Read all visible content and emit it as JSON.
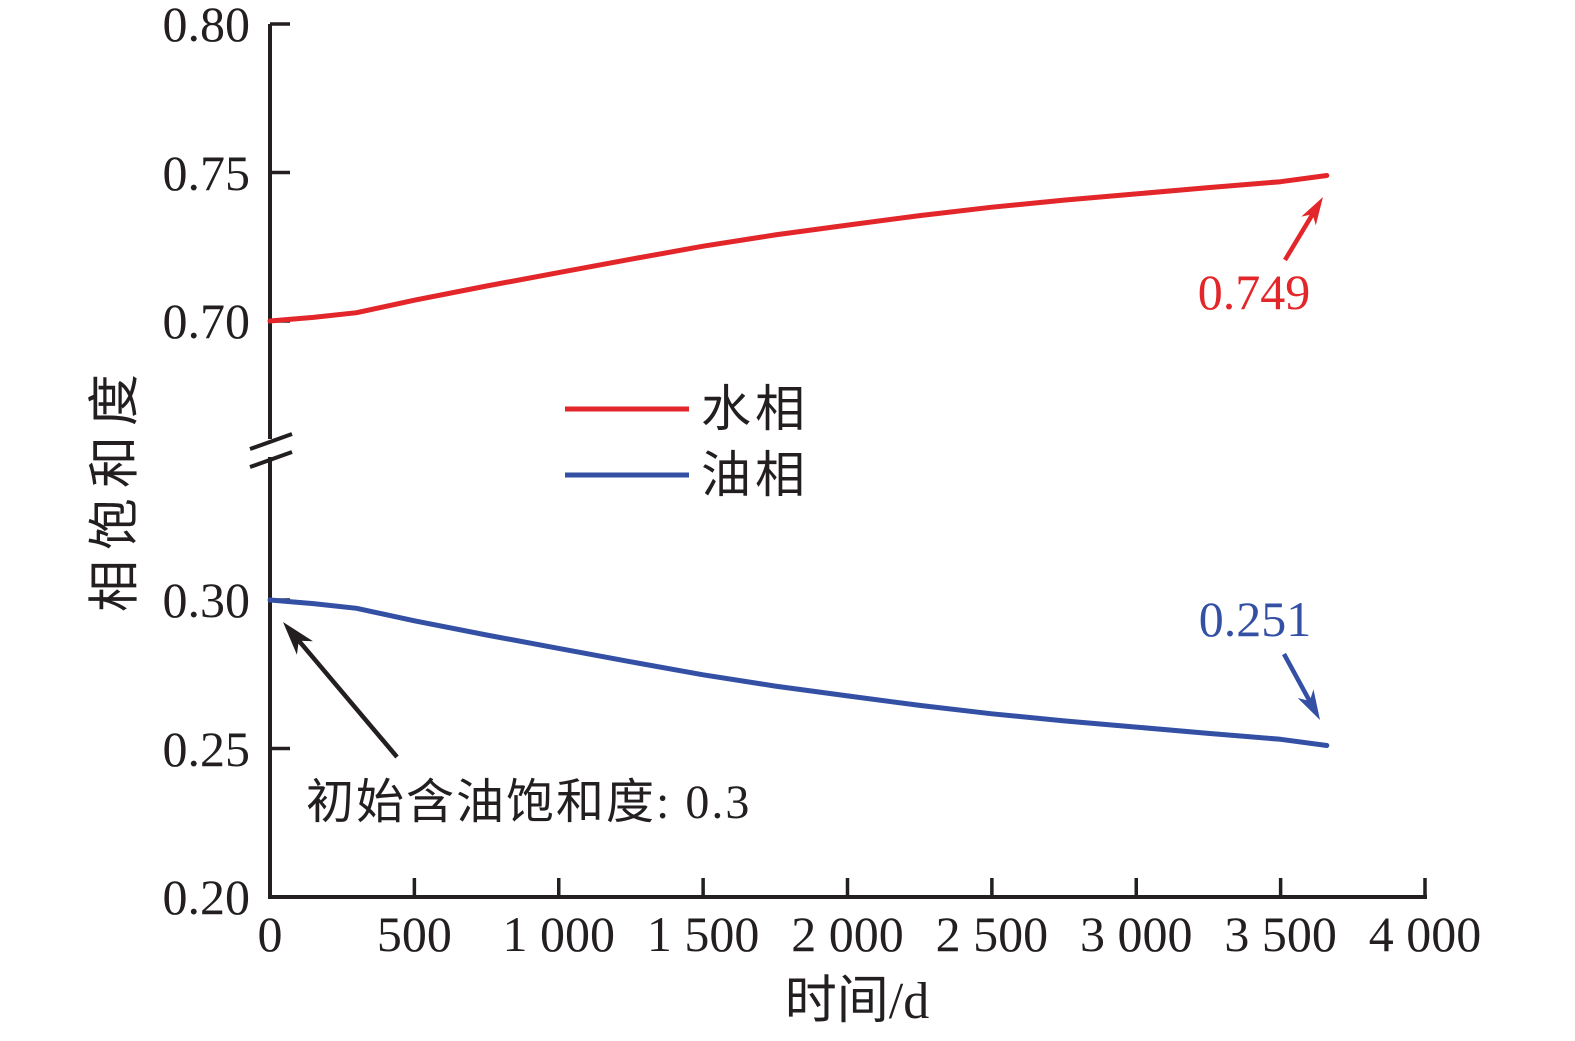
{
  "figure": {
    "background": "#ffffff",
    "axis_color": "#231f20"
  },
  "chart_data": {
    "type": "line",
    "title": "",
    "xlabel": "时间/d",
    "ylabel": "相饱和度",
    "grid": false,
    "legend_position": "center",
    "xlim": [
      0,
      4000
    ],
    "x_ticks": [
      0,
      500,
      1000,
      1500,
      2000,
      2500,
      3000,
      3500,
      4000
    ],
    "x_tick_labels": [
      "0",
      "500",
      "1 000",
      "1 500",
      "2 000",
      "2 500",
      "3 000",
      "3 500",
      "4 000"
    ],
    "y_axis_break": true,
    "y_segments": {
      "lower": [
        0.2,
        0.3
      ],
      "upper": [
        0.7,
        0.8
      ]
    },
    "y_ticks": [
      0.8,
      0.75,
      0.7,
      0.3,
      0.25,
      0.2
    ],
    "y_tick_labels": [
      "0.80",
      "0.75",
      "0.70",
      "0.30",
      "0.25",
      "0.20"
    ],
    "axis_color": "#231f20",
    "series": [
      {
        "name": "水相",
        "color": "#e2262a",
        "end_label": "0.749",
        "x": [
          0,
          150,
          300,
          500,
          750,
          1000,
          1250,
          1500,
          1750,
          2000,
          2250,
          2500,
          2750,
          3000,
          3250,
          3500,
          3660
        ],
        "y": [
          0.7,
          0.7012,
          0.7028,
          0.707,
          0.7118,
          0.7163,
          0.7208,
          0.7252,
          0.729,
          0.7323,
          0.7355,
          0.7383,
          0.7407,
          0.7428,
          0.7449,
          0.7469,
          0.749
        ]
      },
      {
        "name": "油相",
        "color": "#3350a5",
        "end_label": "0.251",
        "x": [
          0,
          150,
          300,
          500,
          750,
          1000,
          1250,
          1500,
          1750,
          2000,
          2250,
          2500,
          2750,
          3000,
          3250,
          3500,
          3660
        ],
        "y": [
          0.3,
          0.2988,
          0.2972,
          0.293,
          0.2882,
          0.2837,
          0.2792,
          0.2748,
          0.271,
          0.2677,
          0.2645,
          0.2617,
          0.2593,
          0.2572,
          0.2551,
          0.2531,
          0.251
        ]
      }
    ],
    "annotation": {
      "text": "初始含油饱和度: 0.3",
      "target_x": 0,
      "target_y": 0.3
    }
  }
}
